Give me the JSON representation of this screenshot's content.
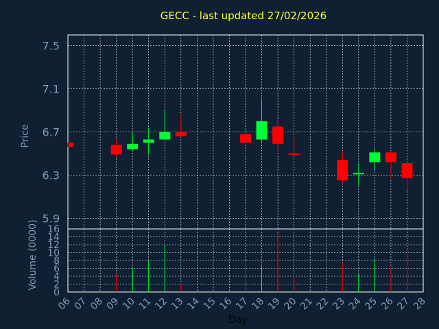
{
  "chart_data": {
    "type": "candlestick",
    "title": "GECC - last updated 27/02/2026",
    "ylabel": "Price",
    "volume_label": "Volume (0000)",
    "xlabel": "Day",
    "price_ticks": [
      "7.5",
      "7.1",
      "6.7",
      "6.3",
      "5.9"
    ],
    "volume_ticks": [
      "0",
      "2",
      "4",
      "6",
      "8",
      "10",
      "12",
      "14",
      "16"
    ],
    "day_ticks": [
      "06",
      "07",
      "08",
      "09",
      "10",
      "11",
      "12",
      "13",
      "14",
      "15",
      "16",
      "17",
      "18",
      "19",
      "20",
      "21",
      "22",
      "23",
      "24",
      "25",
      "26",
      "27",
      "28"
    ],
    "ylim": [
      5.8,
      7.6
    ],
    "vol_lim": [
      0,
      16
    ],
    "up_color": "#00ff33",
    "down_color": "#ff0000",
    "grid": true,
    "candles": [
      {
        "day": "06",
        "open": 6.6,
        "close": 6.56,
        "high": 6.6,
        "low": 6.56,
        "volume": 0
      },
      {
        "day": "09",
        "open": 6.58,
        "close": 6.49,
        "high": 6.63,
        "low": 6.47,
        "volume": 4.5
      },
      {
        "day": "10",
        "open": 6.54,
        "close": 6.59,
        "high": 6.7,
        "low": 6.52,
        "volume": 6
      },
      {
        "day": "11",
        "open": 6.6,
        "close": 6.63,
        "high": 6.74,
        "low": 6.49,
        "volume": 8
      },
      {
        "day": "12",
        "open": 6.63,
        "close": 6.7,
        "high": 6.9,
        "low": 6.62,
        "volume": 12
      },
      {
        "day": "13",
        "open": 6.7,
        "close": 6.66,
        "high": 6.86,
        "low": 6.65,
        "volume": 2
      },
      {
        "day": "17",
        "open": 6.68,
        "close": 6.6,
        "high": 6.72,
        "low": 6.59,
        "volume": 8
      },
      {
        "day": "18",
        "open": 6.63,
        "close": 6.8,
        "high": 7.0,
        "low": 6.6,
        "volume": 6.5
      },
      {
        "day": "19",
        "open": 6.75,
        "close": 6.59,
        "high": 6.82,
        "low": 6.51,
        "volume": 15
      },
      {
        "day": "20",
        "open": 6.5,
        "close": 6.49,
        "high": 6.66,
        "low": 6.49,
        "volume": 4
      },
      {
        "day": "23",
        "open": 6.44,
        "close": 6.25,
        "high": 6.52,
        "low": 6.22,
        "volume": 7.5
      },
      {
        "day": "24",
        "open": 6.31,
        "close": 6.32,
        "high": 6.41,
        "low": 6.2,
        "volume": 4.5
      },
      {
        "day": "25",
        "open": 6.42,
        "close": 6.51,
        "high": 6.54,
        "low": 6.35,
        "volume": 8.5
      },
      {
        "day": "26",
        "open": 6.51,
        "close": 6.42,
        "high": 6.51,
        "low": 6.26,
        "volume": 6.5
      },
      {
        "day": "27",
        "open": 6.41,
        "close": 6.27,
        "high": 6.41,
        "low": 6.15,
        "volume": 10.5
      }
    ]
  }
}
